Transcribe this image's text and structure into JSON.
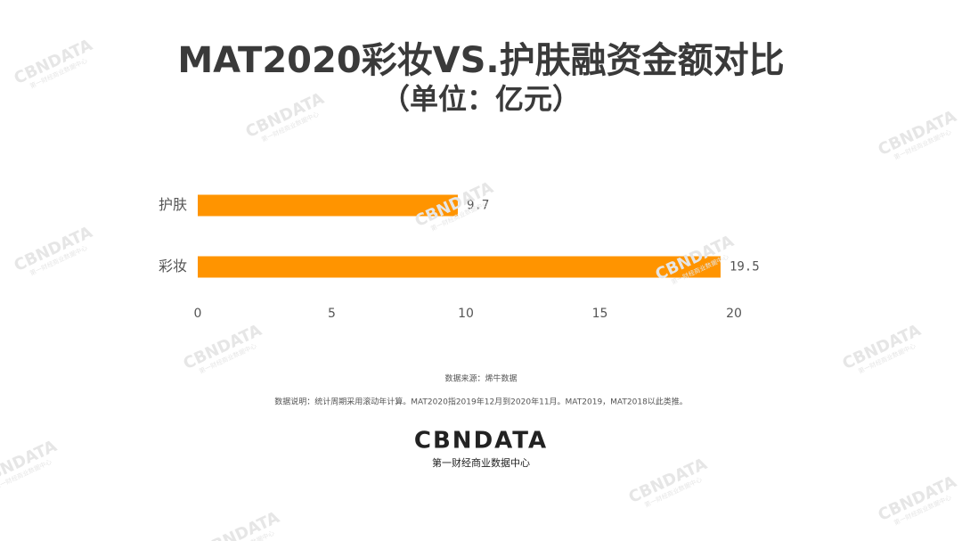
{
  "chart_data": {
    "type": "hbar",
    "title": "MAT2020彩妆VS.护肤融资金额对比",
    "subtitle": "（单位：亿元）",
    "categories": [
      "护肤",
      "彩妆"
    ],
    "values": [
      9.7,
      19.5
    ],
    "color": "#ff9400",
    "xlim": [
      0,
      20
    ],
    "xticks": [
      0,
      5,
      10,
      15,
      20
    ],
    "grid": false,
    "source": "数据来源：烯牛数据",
    "note": "数据说明：统计周期采用滚动年计算。MAT2020指2019年12月到2020年11月。MAT2019，MAT2018以此类推。"
  },
  "logo": {
    "name": "CBNDATA",
    "tagline": "第一财经商业数据中心"
  }
}
